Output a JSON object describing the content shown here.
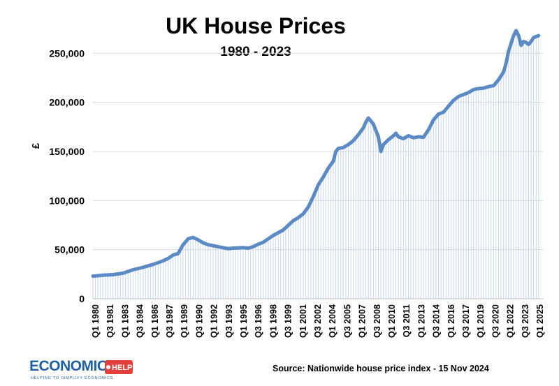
{
  "chart_data": {
    "type": "line",
    "title": "UK House Prices",
    "subtitle": "1980 - 2023",
    "ylabel": "£",
    "xlabel": "",
    "ylim": [
      0,
      290000
    ],
    "yticks": [
      0,
      50000,
      100000,
      150000,
      200000,
      250000
    ],
    "ytick_labels": [
      "0",
      "50,000",
      "100,000",
      "150,000",
      "200,000",
      "250,000"
    ],
    "x_tick_labels": [
      "Q1 1980",
      "Q3 1981",
      "Q1 1983",
      "Q3 1984",
      "Q1 1986",
      "Q3 1987",
      "Q1 1989",
      "Q3 1990",
      "Q1 1992",
      "Q3 1993",
      "Q1 1995",
      "Q3 1996",
      "Q1 1998",
      "Q3 1999",
      "Q1 2001",
      "Q3 2002",
      "Q1 2004",
      "Q3 2005",
      "Q1 2007",
      "Q3 2008",
      "Q1 2010",
      "Q3 2011",
      "Q1 2013",
      "Q3 2014",
      "Q1 2016",
      "Q3 2017",
      "Q1 2019",
      "Q3 2020",
      "Q1 2022",
      "Q3 2023",
      "Q1 2025"
    ],
    "line_color": "#5b8ac5",
    "fill_color": "#c5d7ee",
    "grid": true,
    "series": [
      {
        "x": [
          1980.0,
          1981.0,
          1982.0,
          1983.0,
          1984.0,
          1985.0,
          1986.0,
          1987.0,
          1987.5,
          1988.0,
          1988.5,
          1989.0,
          1989.5,
          1990.0,
          1990.5,
          1991.0,
          1991.5,
          1992.0,
          1992.5,
          1993.0,
          1993.5,
          1994.0,
          1995.0,
          1995.5,
          1996.0,
          1996.5,
          1997.0,
          1998.0,
          1999.0,
          2000.0,
          2000.5,
          2001.0,
          2001.5,
          2002.0,
          2002.5,
          2003.0,
          2003.5,
          2004.0,
          2004.25,
          2004.5,
          2005.0,
          2005.5,
          2006.0,
          2006.5,
          2007.0,
          2007.25,
          2007.5,
          2008.0,
          2008.5,
          2008.75,
          2009.0,
          2009.5,
          2010.0,
          2010.25,
          2010.5,
          2011.0,
          2011.5,
          2012.0,
          2012.5,
          2013.0,
          2013.5,
          2014.0,
          2014.5,
          2015.0,
          2015.5,
          2016.0,
          2016.5,
          2017.0,
          2017.5,
          2018.0,
          2018.5,
          2019.0,
          2019.5,
          2020.0,
          2020.5,
          2021.0,
          2021.25,
          2021.5,
          2021.75,
          2022.0,
          2022.25,
          2022.5,
          2022.75,
          2023.0,
          2023.25,
          2023.5,
          2023.75,
          2024.0,
          2024.25,
          2024.5
        ],
        "values": [
          23000,
          24000,
          24500,
          26000,
          29500,
          32000,
          35000,
          38500,
          41000,
          44500,
          46000,
          55000,
          61000,
          62500,
          60000,
          57000,
          55000,
          54000,
          53000,
          52000,
          51000,
          51500,
          52000,
          51500,
          53000,
          55500,
          57500,
          64500,
          70000,
          79500,
          82500,
          86500,
          93500,
          104000,
          116000,
          124000,
          133000,
          140000,
          150000,
          153000,
          154000,
          157000,
          161000,
          167000,
          174000,
          180000,
          184000,
          178000,
          165000,
          150000,
          157000,
          162000,
          166000,
          168500,
          165000,
          163000,
          166000,
          164000,
          165000,
          164500,
          172000,
          182000,
          188000,
          190000,
          196000,
          202000,
          206000,
          208000,
          210000,
          213000,
          214000,
          214500,
          216000,
          217000,
          223000,
          231000,
          240000,
          252000,
          260000,
          268000,
          273000,
          268000,
          258000,
          262000,
          261000,
          259000,
          262000,
          266000,
          267000,
          268000
        ]
      }
    ],
    "source": "Source: Nationwide house price index - 15 Nov 2024",
    "logo": {
      "text_main": "ECONOMICS",
      "text_badge": "HELP",
      "tagline": "HELPING TO SIMPLIFY ECONOMICS"
    }
  }
}
